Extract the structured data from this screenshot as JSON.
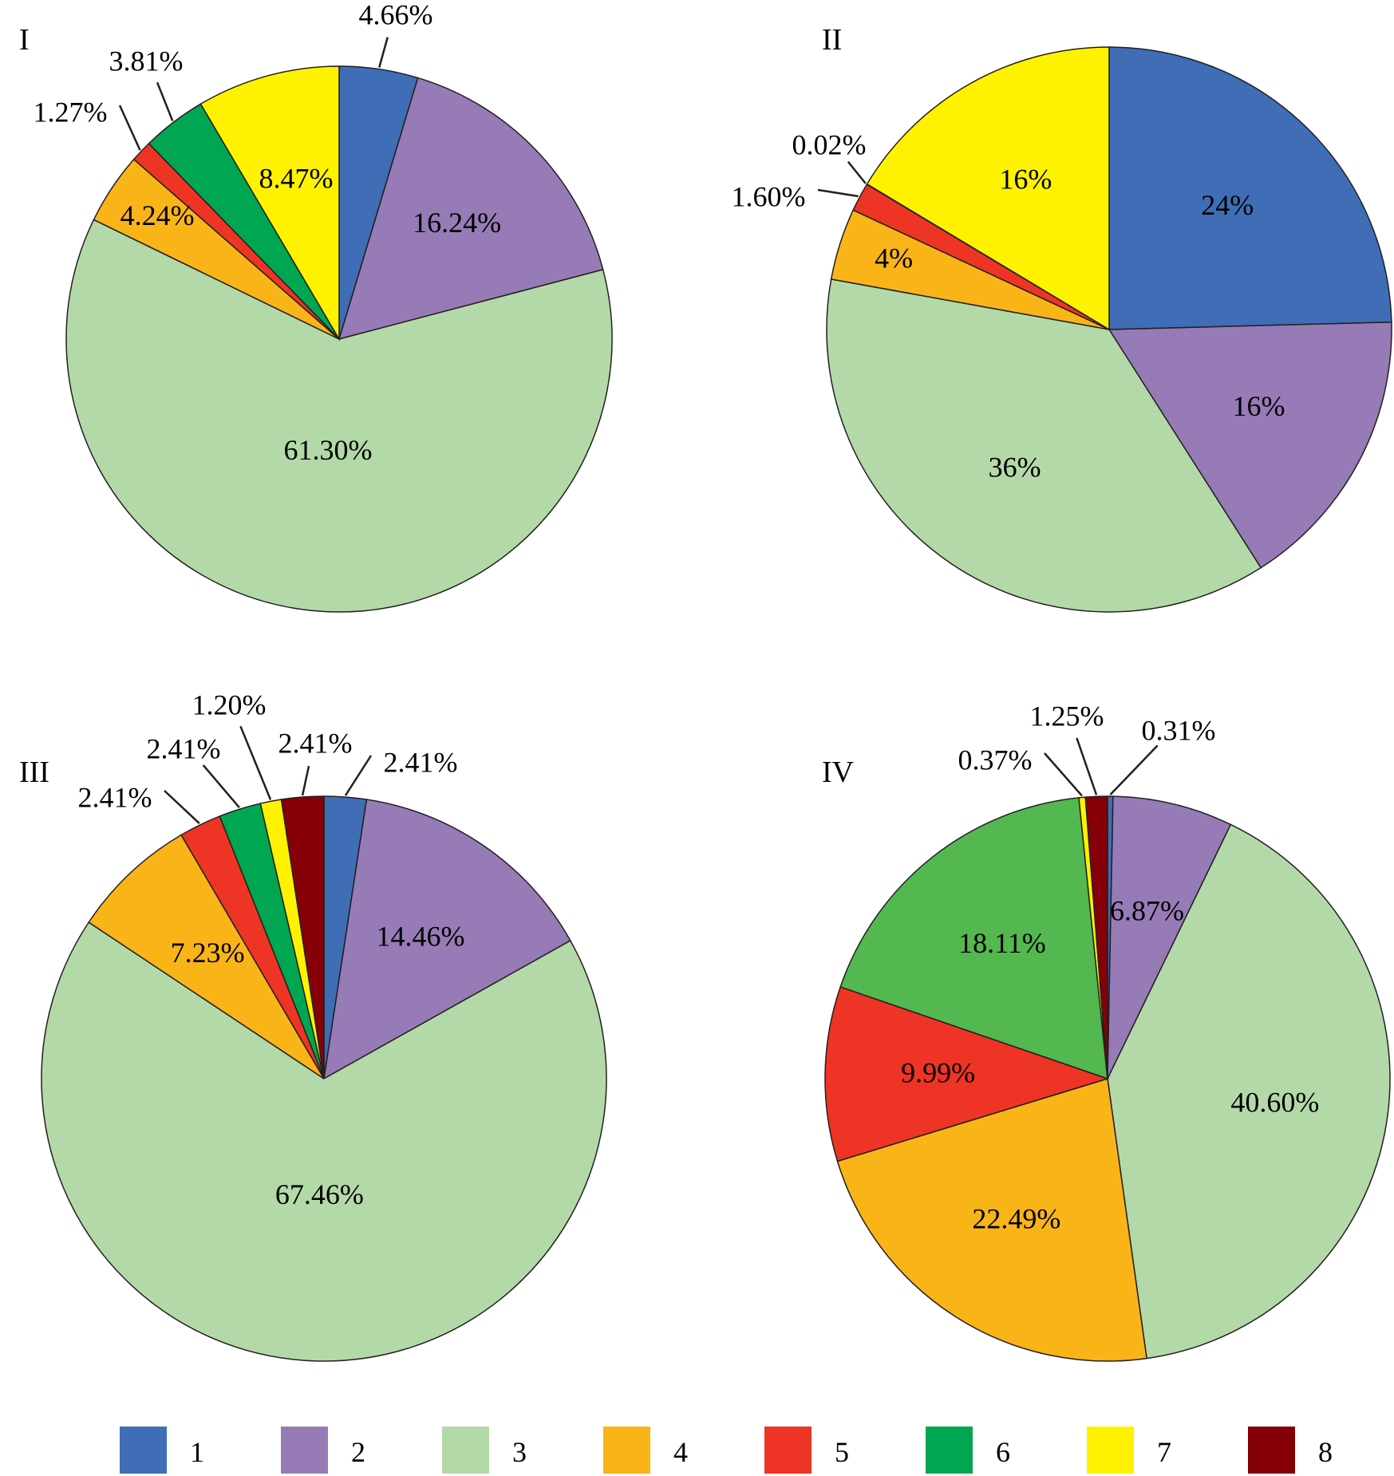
{
  "chart_data": [
    {
      "type": "pie",
      "title": "I",
      "categories": [
        "1",
        "2",
        "3",
        "4",
        "5",
        "6",
        "7"
      ],
      "values": [
        4.66,
        16.24,
        61.3,
        4.24,
        1.27,
        3.81,
        8.47
      ],
      "labels": [
        "4.66%",
        "16.24%",
        "61.30%",
        "4.24%",
        "1.27%",
        "3.81%",
        "8.47%"
      ]
    },
    {
      "type": "pie",
      "title": "II",
      "categories": [
        "1",
        "2",
        "3",
        "4",
        "5",
        "6",
        "7"
      ],
      "values": [
        24,
        16,
        36,
        4,
        1.6,
        0.02,
        16
      ],
      "labels": [
        "24%",
        "16%",
        "36%",
        "4%",
        "1.60%",
        "0.02%",
        "16%"
      ]
    },
    {
      "type": "pie",
      "title": "III",
      "categories": [
        "1",
        "2",
        "3",
        "4",
        "5",
        "6",
        "7",
        "8"
      ],
      "values": [
        2.41,
        14.46,
        67.46,
        7.23,
        2.41,
        2.41,
        1.2,
        2.41
      ],
      "labels": [
        "2.41%",
        "14.46%",
        "67.46%",
        "7.23%",
        "2.41%",
        "2.41%",
        "1.20%",
        "2.41%"
      ]
    },
    {
      "type": "pie",
      "title": "IV",
      "categories": [
        "1",
        "2",
        "3",
        "4",
        "5",
        "6",
        "7",
        "8"
      ],
      "values": [
        0.31,
        6.87,
        40.6,
        22.49,
        9.99,
        18.11,
        0.37,
        1.25
      ],
      "labels": [
        "0.31%",
        "6.87%",
        "40.60%",
        "22.49%",
        "9.99%",
        "18.11%",
        "0.37%",
        "1.25%"
      ]
    }
  ],
  "legend": {
    "placement": "bottom",
    "items": [
      {
        "label": "1",
        "color": "#3f6db6"
      },
      {
        "label": "2",
        "color": "#967bb6"
      },
      {
        "label": "3",
        "color": "#b4d9a8"
      },
      {
        "label": "4",
        "color": "#f9b418"
      },
      {
        "label": "5",
        "color": "#ee3424"
      },
      {
        "label": "6",
        "color": "#00a651"
      },
      {
        "label": "7",
        "color": "#fff200"
      },
      {
        "label": "8",
        "color": "#850007"
      }
    ]
  },
  "series_colors_override": {
    "IV": {
      "6": "#52b84f"
    }
  }
}
